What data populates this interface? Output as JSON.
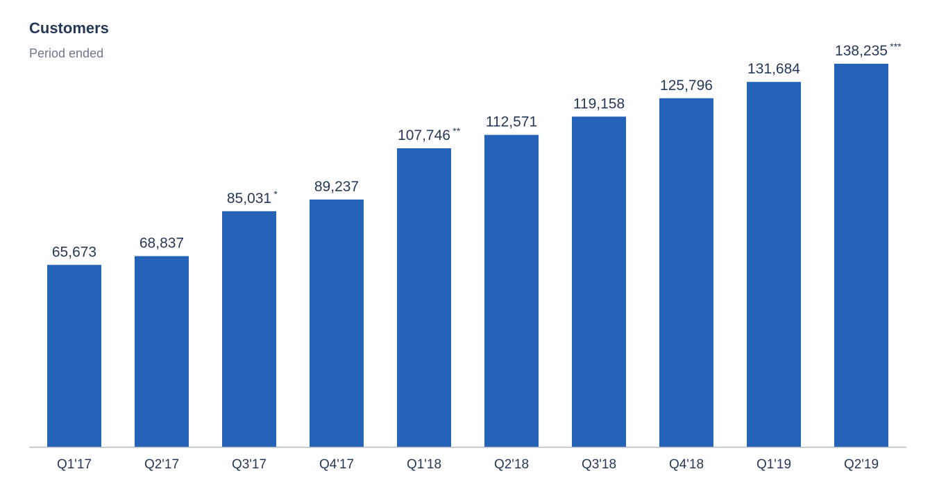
{
  "chart_data": {
    "type": "bar",
    "title": "Customers",
    "subtitle": "Period ended",
    "categories": [
      "Q1'17",
      "Q2'17",
      "Q3'17",
      "Q4'17",
      "Q1'18",
      "Q2'18",
      "Q3'18",
      "Q4'18",
      "Q1'19",
      "Q2'19"
    ],
    "values": [
      65673,
      68837,
      85031,
      89237,
      107746,
      112571,
      119158,
      125796,
      131684,
      138235
    ],
    "value_labels": [
      "65,673",
      "68,837",
      "85,031",
      "89,237",
      "107,746",
      "112,571",
      "119,158",
      "125,796",
      "131,684",
      "138,235"
    ],
    "footnote_marks": [
      "",
      "",
      "*",
      "",
      "**",
      "",
      "",
      "",
      "",
      "***"
    ],
    "xlabel": "",
    "ylabel": "",
    "ylim": [
      0,
      138235
    ],
    "grid": false,
    "legend": "none",
    "bar_color": "#2563b9",
    "axis_color": "#b3b9c4",
    "text_color": "#253858"
  }
}
